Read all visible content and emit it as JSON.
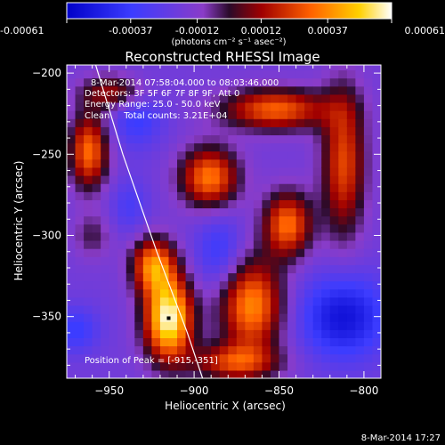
{
  "chart_data": {
    "type": "heatmap",
    "title": "Reconstructed RHESSI Image",
    "xlabel": "Heliocentric X (arcsec)",
    "ylabel": "Heliocentric Y (arcsec)",
    "xlim": [
      -975,
      -790
    ],
    "ylim": [
      -388,
      -195
    ],
    "x_ticks": [
      -950,
      -900,
      -850,
      -800
    ],
    "y_ticks": [
      -200,
      -250,
      -300,
      -350
    ],
    "x_tick_labels": [
      "−950",
      "−900",
      "−850",
      "−800"
    ],
    "y_tick_labels": [
      "−200",
      "−250",
      "−300",
      "−350"
    ],
    "colorbar": {
      "min": -0.00061,
      "max": 0.00061,
      "ticks": [
        -0.00061,
        -0.00037,
        -0.00012,
        0.00012,
        0.00037,
        0.00061
      ],
      "tick_labels": [
        "-0.00061",
        "-0.00037",
        "-0.00012",
        "0.00012",
        "0.00037",
        "0.00061"
      ],
      "unit_label": "(photons cm⁻² s⁻¹ asec⁻²)"
    },
    "annotations": [
      "8-Mar-2014 07:58:04.000 to 08:03:46.000",
      "Detectors: 3F 5F 6F 7F 8F 9F, Att 0",
      "Energy Range: 25.0 - 50.0 keV",
      "Clean     Total counts: 3.21E+04"
    ],
    "peak_label": "Position of Peak = [-915,-351]",
    "peak": {
      "x": -915,
      "y": -351
    },
    "limb_curve": [
      [
        -960,
        -188
      ],
      [
        -942,
        -250
      ],
      [
        -922,
        -310
      ],
      [
        -904,
        -360
      ],
      [
        -895,
        -388
      ]
    ],
    "field": {
      "base": -0.00018,
      "blobs": [
        {
          "x": -962,
          "y": -248,
          "sx": 8,
          "sy": 16,
          "amp": 0.0005
        },
        {
          "x": -946,
          "y": -212,
          "sx": 14,
          "sy": 8,
          "amp": 0.00034
        },
        {
          "x": -891,
          "y": -264,
          "sx": 12,
          "sy": 13,
          "amp": 0.00052
        },
        {
          "x": -852,
          "y": -222,
          "sx": 22,
          "sy": 9,
          "amp": 0.00048
        },
        {
          "x": -845,
          "y": -293,
          "sx": 10,
          "sy": 14,
          "amp": 0.0005
        },
        {
          "x": -866,
          "y": -343,
          "sx": 13,
          "sy": 20,
          "amp": 0.00055
        },
        {
          "x": -876,
          "y": -378,
          "sx": 18,
          "sy": 8,
          "amp": 0.0004
        },
        {
          "x": -812,
          "y": -255,
          "sx": 9,
          "sy": 32,
          "amp": 0.00043
        },
        {
          "x": -915,
          "y": -351,
          "sx": 10,
          "sy": 18,
          "amp": 0.00078
        },
        {
          "x": -924,
          "y": -318,
          "sx": 9,
          "sy": 12,
          "amp": 0.00052
        },
        {
          "x": -960,
          "y": -300,
          "sx": 8,
          "sy": 10,
          "amp": 0.00016
        },
        {
          "x": -970,
          "y": -358,
          "sx": 10,
          "sy": 10,
          "amp": -0.0002
        },
        {
          "x": -934,
          "y": -225,
          "sx": 11,
          "sy": 14,
          "amp": -0.00022
        },
        {
          "x": -885,
          "y": -310,
          "sx": 10,
          "sy": 16,
          "amp": -0.0002
        },
        {
          "x": -812,
          "y": -350,
          "sx": 18,
          "sy": 18,
          "amp": -0.00036
        },
        {
          "x": -938,
          "y": -282,
          "sx": 8,
          "sy": 12,
          "amp": -0.00014
        }
      ]
    }
  },
  "timestamp": "8-Mar-2014 17:27"
}
